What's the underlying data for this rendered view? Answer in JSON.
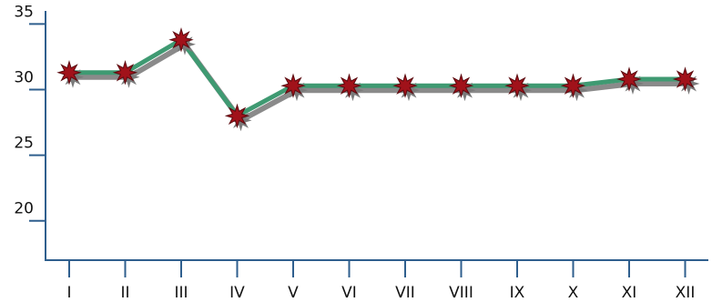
{
  "chart_data": {
    "type": "line",
    "title": "",
    "xlabel": "",
    "ylabel": "",
    "categories": [
      "I",
      "II",
      "III",
      "IV",
      "V",
      "VI",
      "VII",
      "VIII",
      "IX",
      "X",
      "XI",
      "XII"
    ],
    "series": [
      {
        "values": [
          31.3,
          31.3,
          33.8,
          28.0,
          30.3,
          30.3,
          30.3,
          30.3,
          30.3,
          30.3,
          30.8,
          30.8
        ]
      }
    ],
    "yticks": [
      "20",
      "25",
      "30",
      "35"
    ],
    "ylim": [
      17,
      36
    ],
    "grid": false,
    "legend": "none",
    "colors": {
      "axis": "#2f5f8e",
      "line": "#3f9a72",
      "shadow": "#8a8a8a",
      "marker": "#a1121a"
    }
  }
}
